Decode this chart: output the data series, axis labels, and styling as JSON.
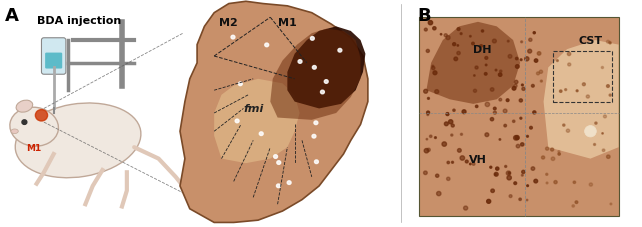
{
  "panel_A_label": "A",
  "panel_B_label": "B",
  "bda_injection_text": "BDA injection",
  "M1_label": "M1",
  "M2_label": "M2",
  "fmi_label": "fmi",
  "DH_label": "DH",
  "VH_label": "VH",
  "CST_label": "CST",
  "bg_color": "#ffffff",
  "figure_width": 6.42,
  "figure_height": 2.28,
  "dpi": 100,
  "left_panel_bg": "#f5ede0",
  "mid_panel_bg": "#c8956b",
  "right_panel_bg": "#c8956b",
  "dark_injection_color": "#3a1a00",
  "dashed_line_color": "#222222",
  "border_color": "#333333"
}
